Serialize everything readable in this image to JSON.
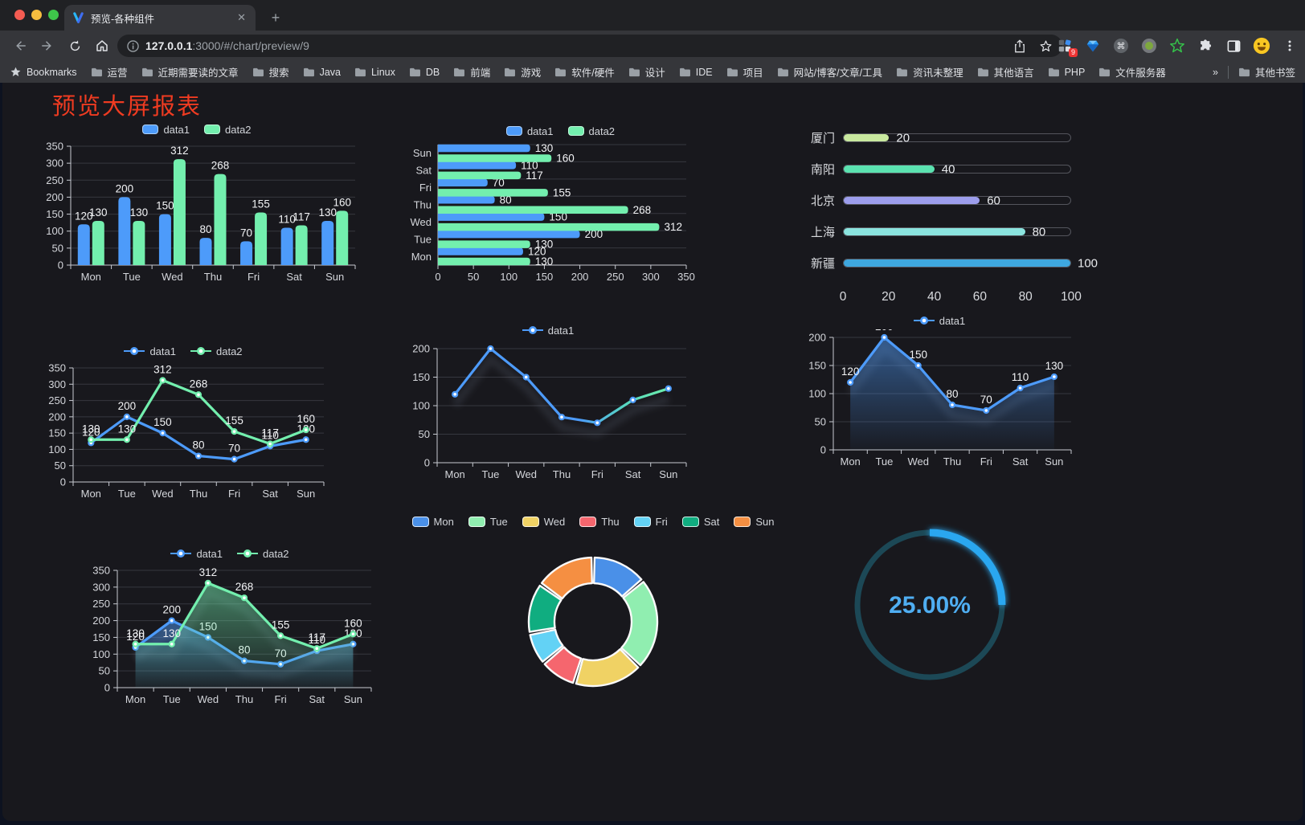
{
  "browser": {
    "tab_title": "预览-各种组件",
    "new_tab_label": "+",
    "close_label": "✕",
    "url": {
      "host": "127.0.0.1",
      "rest": ":3000/#/chart/preview/9"
    },
    "extension_badge": "9",
    "bookmarks_label": "Bookmarks",
    "bookmarks": [
      "运营",
      "近期需要读的文章",
      "搜索",
      "Java",
      "Linux",
      "DB",
      "前端",
      "游戏",
      "软件/硬件",
      "设计",
      "IDE",
      "项目",
      "网站/博客/文章/工具",
      "资讯未整理",
      "其他语言",
      "PHP",
      "文件服务器"
    ],
    "bookmarks_overflow": "»",
    "other_bookmarks": "其他书签"
  },
  "page": {
    "title": "预览大屏报表",
    "title_color": "#ef3b21"
  },
  "chart_data": [
    {
      "id": "grouped-bar",
      "type": "bar",
      "categories": [
        "Mon",
        "Tue",
        "Wed",
        "Thu",
        "Fri",
        "Sat",
        "Sun"
      ],
      "series": [
        {
          "name": "data1",
          "color": "#4D9BFA",
          "values": [
            120,
            200,
            150,
            80,
            70,
            110,
            130
          ]
        },
        {
          "name": "data2",
          "color": "#73EFAE",
          "values": [
            130,
            130,
            312,
            268,
            155,
            117,
            160
          ]
        }
      ],
      "ylim": [
        0,
        350
      ],
      "ytick": 50,
      "value_labels": true,
      "legend_position": "top",
      "grid": true
    },
    {
      "id": "horizontal-bar",
      "type": "hbar",
      "categories": [
        "Mon",
        "Tue",
        "Wed",
        "Thu",
        "Fri",
        "Sat",
        "Sun"
      ],
      "series": [
        {
          "name": "data1",
          "color": "#4D9BFA",
          "values": [
            120,
            200,
            150,
            80,
            70,
            110,
            130
          ]
        },
        {
          "name": "data2",
          "color": "#73EFAE",
          "values": [
            130,
            130,
            312,
            268,
            155,
            117,
            160
          ]
        }
      ],
      "xlim": [
        0,
        350
      ],
      "xtick": 50,
      "value_labels": true,
      "legend_position": "top",
      "grid": true
    },
    {
      "id": "city-progress",
      "type": "progress",
      "max": 100,
      "xticks": [
        0,
        20,
        40,
        60,
        80,
        100
      ],
      "rows": [
        {
          "label": "厦门",
          "value": 20,
          "color": "#C9E99F"
        },
        {
          "label": "南阳",
          "value": 40,
          "color": "#5BE2B0"
        },
        {
          "label": "北京",
          "value": 60,
          "color": "#9C9DEC"
        },
        {
          "label": "上海",
          "value": 80,
          "color": "#8BE4DF"
        },
        {
          "label": "新疆",
          "value": 100,
          "color": "#3EA7DF"
        }
      ]
    },
    {
      "id": "multi-line",
      "type": "line",
      "categories": [
        "Mon",
        "Tue",
        "Wed",
        "Thu",
        "Fri",
        "Sat",
        "Sun"
      ],
      "series": [
        {
          "name": "data1",
          "color": "#4D9BFA",
          "values": [
            120,
            200,
            150,
            80,
            70,
            110,
            130
          ]
        },
        {
          "name": "data2",
          "color": "#73EFAE",
          "values": [
            130,
            130,
            312,
            268,
            155,
            117,
            160
          ]
        }
      ],
      "ylim": [
        0,
        350
      ],
      "ytick": 50,
      "value_labels": true,
      "markers": true,
      "legend_position": "top",
      "grid": true
    },
    {
      "id": "gradient-line",
      "type": "line",
      "categories": [
        "Mon",
        "Tue",
        "Wed",
        "Thu",
        "Fri",
        "Sat",
        "Sun"
      ],
      "series": [
        {
          "name": "data1",
          "color": "#4D9BFA",
          "gradient_end": "#6CEDAA",
          "values": [
            120,
            200,
            150,
            80,
            70,
            110,
            130
          ]
        }
      ],
      "ylim": [
        0,
        200
      ],
      "ytick": 50,
      "value_labels": false,
      "markers": true,
      "shadow": true,
      "legend_position": "top",
      "grid": true
    },
    {
      "id": "area-line",
      "type": "line",
      "categories": [
        "Mon",
        "Tue",
        "Wed",
        "Thu",
        "Fri",
        "Sat",
        "Sun"
      ],
      "series": [
        {
          "name": "data1",
          "color": "#4D9BFA",
          "area": true,
          "values": [
            120,
            200,
            150,
            80,
            70,
            110,
            130
          ]
        }
      ],
      "ylim": [
        0,
        200
      ],
      "ytick": 50,
      "value_labels": true,
      "markers": true,
      "shadow": true,
      "legend_position": "top",
      "grid": true
    },
    {
      "id": "multi-area",
      "type": "line",
      "categories": [
        "Mon",
        "Tue",
        "Wed",
        "Thu",
        "Fri",
        "Sat",
        "Sun"
      ],
      "series": [
        {
          "name": "data1",
          "color": "#4D9BFA",
          "area": true,
          "values": [
            120,
            200,
            150,
            80,
            70,
            110,
            130
          ]
        },
        {
          "name": "data2",
          "color": "#73EFAE",
          "area": true,
          "values": [
            130,
            130,
            312,
            268,
            155,
            117,
            160
          ]
        }
      ],
      "ylim": [
        0,
        350
      ],
      "ytick": 50,
      "value_labels": true,
      "markers": true,
      "shadow": true,
      "legend_position": "top",
      "grid": true
    },
    {
      "id": "donut",
      "type": "donut",
      "legend_position": "top",
      "items": [
        {
          "label": "Mon",
          "value": 120,
          "color": "#4A90E8"
        },
        {
          "label": "Tue",
          "value": 200,
          "color": "#90EEB0"
        },
        {
          "label": "Wed",
          "value": 150,
          "color": "#F0D264"
        },
        {
          "label": "Thu",
          "value": 80,
          "color": "#F5666E"
        },
        {
          "label": "Fri",
          "value": 70,
          "color": "#63D2F5"
        },
        {
          "label": "Sat",
          "value": 110,
          "color": "#10AD80"
        },
        {
          "label": "Sun",
          "value": 130,
          "color": "#F58F42"
        }
      ]
    },
    {
      "id": "gauge",
      "type": "gauge",
      "value": 25,
      "display": "25.00%",
      "color": "#2AA7F0",
      "track_color": "#1C4856",
      "text_color": "#4FAEF2"
    }
  ]
}
